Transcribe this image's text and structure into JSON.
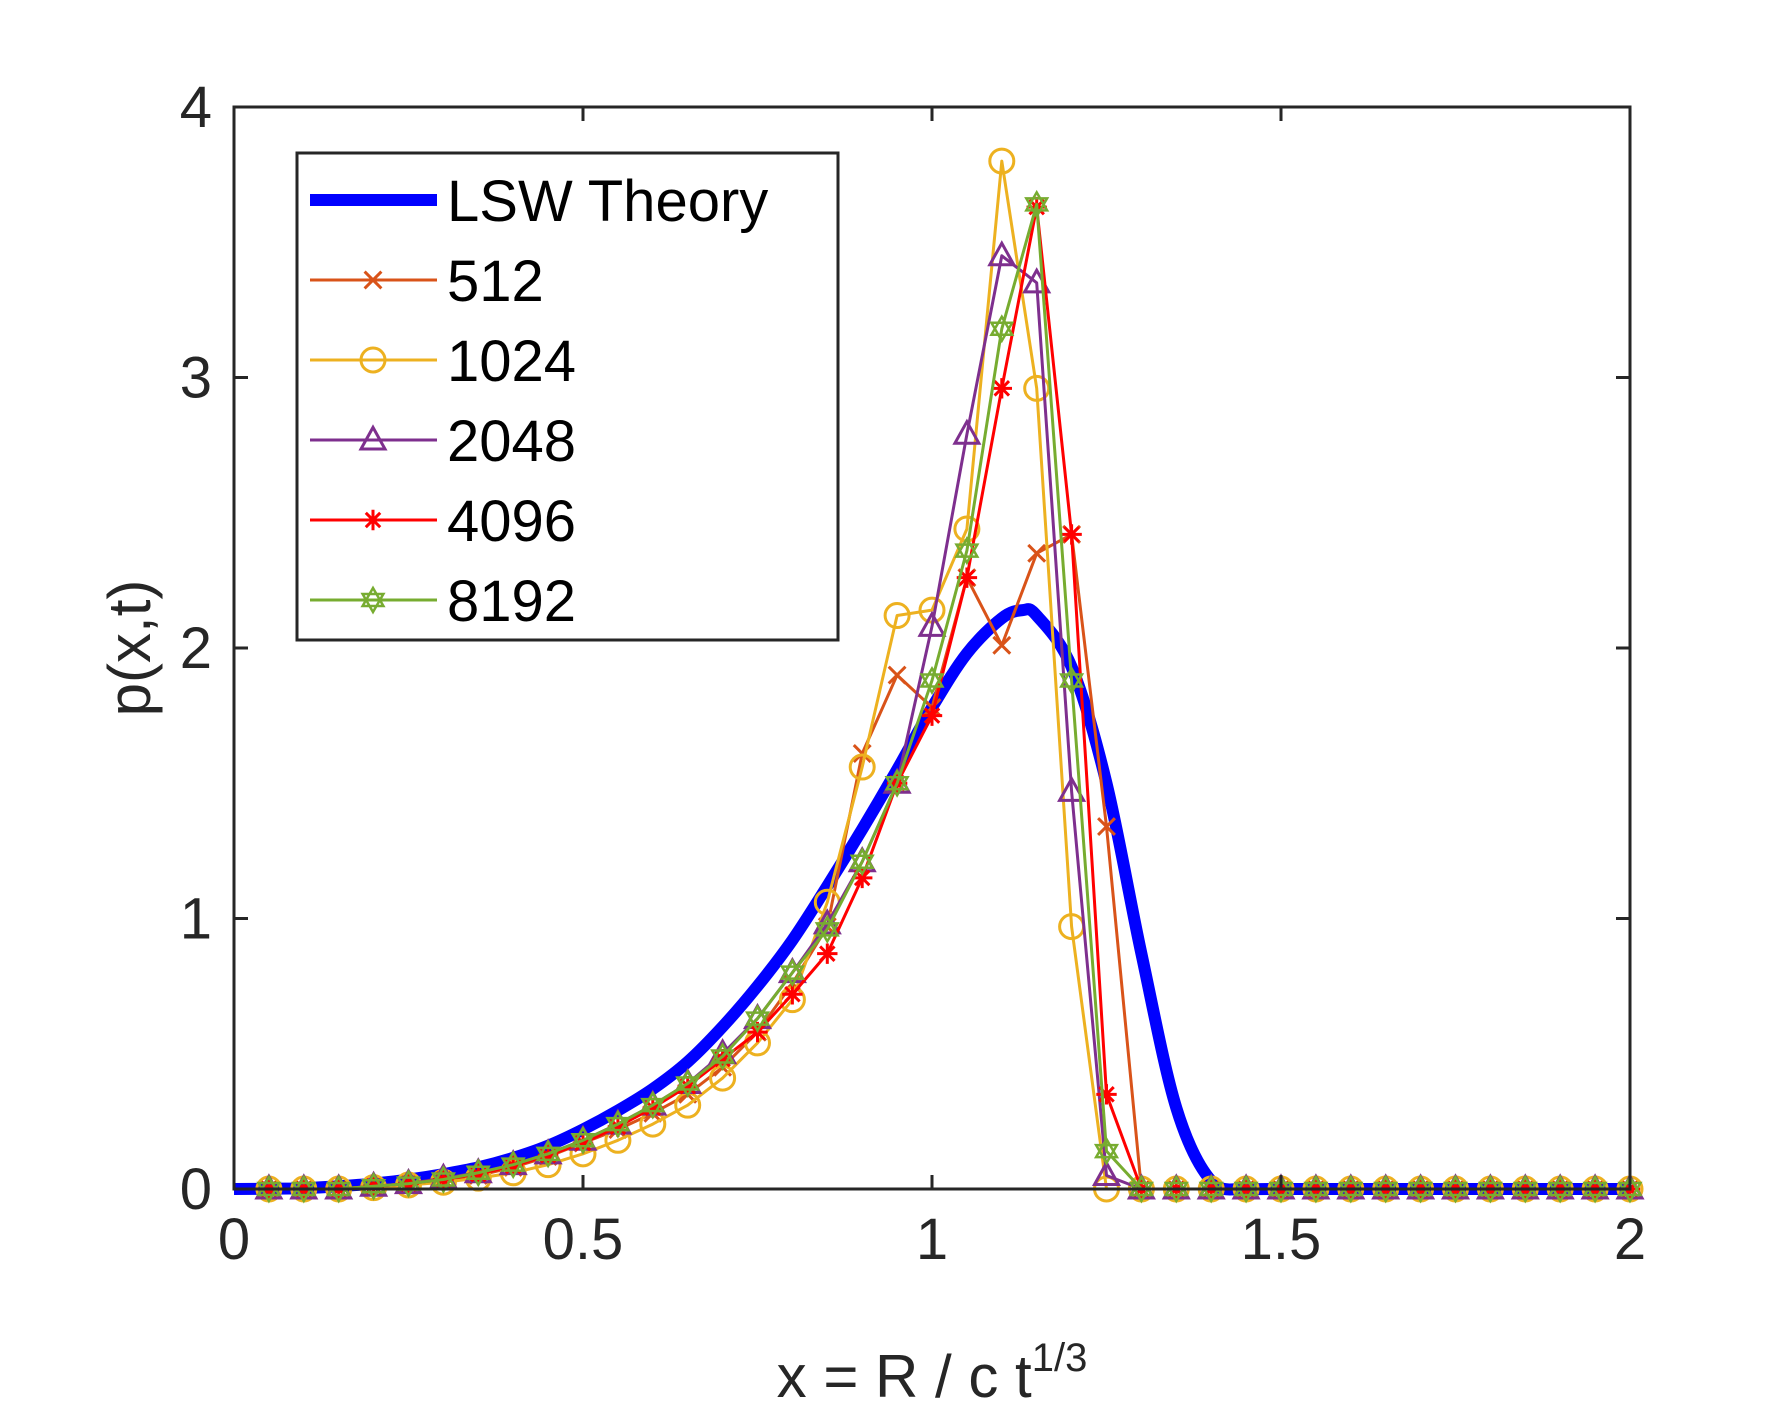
{
  "chart_data": {
    "type": "line",
    "xlabel_main": "x = R / c t",
    "xlabel_sup": "1/3",
    "ylabel": "p(x,t)",
    "xlim": [
      0,
      2
    ],
    "ylim": [
      0,
      4
    ],
    "xticks": [
      0,
      0.5,
      1,
      1.5,
      2
    ],
    "xtick_labels": [
      "0",
      "0.5",
      "1",
      "1.5",
      "2"
    ],
    "yticks": [
      0,
      1,
      2,
      3,
      4
    ],
    "ytick_labels": [
      "0",
      "1",
      "2",
      "3",
      "4"
    ],
    "legend_position": "top-left",
    "theory": {
      "name": "LSW Theory",
      "color": "#0000ff",
      "x": [
        0,
        0.05,
        0.1,
        0.15,
        0.2,
        0.25,
        0.3,
        0.35,
        0.4,
        0.45,
        0.5,
        0.55,
        0.6,
        0.65,
        0.7,
        0.75,
        0.8,
        0.85,
        0.9,
        0.95,
        1.0,
        1.05,
        1.1,
        1.13,
        1.15,
        1.2,
        1.25,
        1.3,
        1.35,
        1.4,
        1.45,
        1.5,
        2.0
      ],
      "y": [
        0,
        0.001,
        0.003,
        0.01,
        0.02,
        0.035,
        0.055,
        0.08,
        0.115,
        0.16,
        0.22,
        0.29,
        0.37,
        0.47,
        0.6,
        0.75,
        0.92,
        1.12,
        1.33,
        1.55,
        1.78,
        1.98,
        2.11,
        2.14,
        2.12,
        1.93,
        1.5,
        0.87,
        0.3,
        0.03,
        0,
        0,
        0
      ]
    },
    "x": [
      0.05,
      0.1,
      0.15,
      0.2,
      0.25,
      0.3,
      0.35,
      0.4,
      0.45,
      0.5,
      0.55,
      0.6,
      0.65,
      0.7,
      0.75,
      0.8,
      0.85,
      0.9,
      0.95,
      1.0,
      1.05,
      1.1,
      1.15,
      1.2,
      1.25,
      1.3,
      1.35,
      1.4,
      1.45,
      1.5,
      1.55,
      1.6,
      1.65,
      1.7,
      1.75,
      1.8,
      1.85,
      1.9,
      1.95,
      2.0
    ],
    "series": [
      {
        "name": "512",
        "color": "#d95319",
        "marker": "x",
        "values": [
          0,
          0,
          0,
          0.01,
          0.02,
          0.03,
          0.05,
          0.08,
          0.12,
          0.17,
          0.22,
          0.28,
          0.35,
          0.45,
          0.58,
          0.76,
          0.97,
          1.61,
          1.9,
          1.78,
          2.26,
          2.01,
          2.35,
          2.42,
          1.34,
          0,
          0,
          0,
          0,
          0,
          0,
          0,
          0,
          0,
          0,
          0,
          0,
          0,
          0,
          0
        ]
      },
      {
        "name": "1024",
        "color": "#edb120",
        "marker": "circle",
        "values": [
          0,
          0,
          0,
          0.005,
          0.015,
          0.025,
          0.04,
          0.06,
          0.09,
          0.13,
          0.18,
          0.24,
          0.31,
          0.41,
          0.54,
          0.7,
          1.06,
          1.56,
          2.12,
          2.14,
          2.44,
          3.8,
          2.96,
          0.97,
          0,
          0,
          0,
          0,
          0,
          0,
          0,
          0,
          0,
          0,
          0,
          0,
          0,
          0,
          0,
          0
        ]
      },
      {
        "name": "2048",
        "color": "#7e2f8e",
        "marker": "triangle",
        "values": [
          0,
          0,
          0,
          0.01,
          0.02,
          0.04,
          0.06,
          0.09,
          0.13,
          0.18,
          0.24,
          0.31,
          0.39,
          0.5,
          0.63,
          0.8,
          0.98,
          1.21,
          1.5,
          2.08,
          2.79,
          3.45,
          3.35,
          1.47,
          0.05,
          0,
          0,
          0,
          0,
          0,
          0,
          0,
          0,
          0,
          0,
          0,
          0,
          0,
          0,
          0
        ]
      },
      {
        "name": "4096",
        "color": "#ff0000",
        "marker": "asterisk",
        "values": [
          0,
          0,
          0,
          0.01,
          0.02,
          0.035,
          0.055,
          0.085,
          0.125,
          0.17,
          0.23,
          0.3,
          0.38,
          0.48,
          0.58,
          0.72,
          0.87,
          1.15,
          1.5,
          1.75,
          2.26,
          2.96,
          3.63,
          2.42,
          0.35,
          0,
          0,
          0,
          0,
          0,
          0,
          0,
          0,
          0,
          0,
          0,
          0,
          0,
          0,
          0
        ]
      },
      {
        "name": "8192",
        "color": "#77ac30",
        "marker": "hexagram",
        "values": [
          0,
          0,
          0,
          0.01,
          0.02,
          0.035,
          0.06,
          0.09,
          0.13,
          0.18,
          0.24,
          0.31,
          0.39,
          0.49,
          0.63,
          0.8,
          0.96,
          1.21,
          1.5,
          1.88,
          2.36,
          3.18,
          3.64,
          1.88,
          0.14,
          0,
          0,
          0,
          0,
          0,
          0,
          0,
          0,
          0,
          0,
          0,
          0,
          0,
          0,
          0
        ]
      }
    ]
  }
}
